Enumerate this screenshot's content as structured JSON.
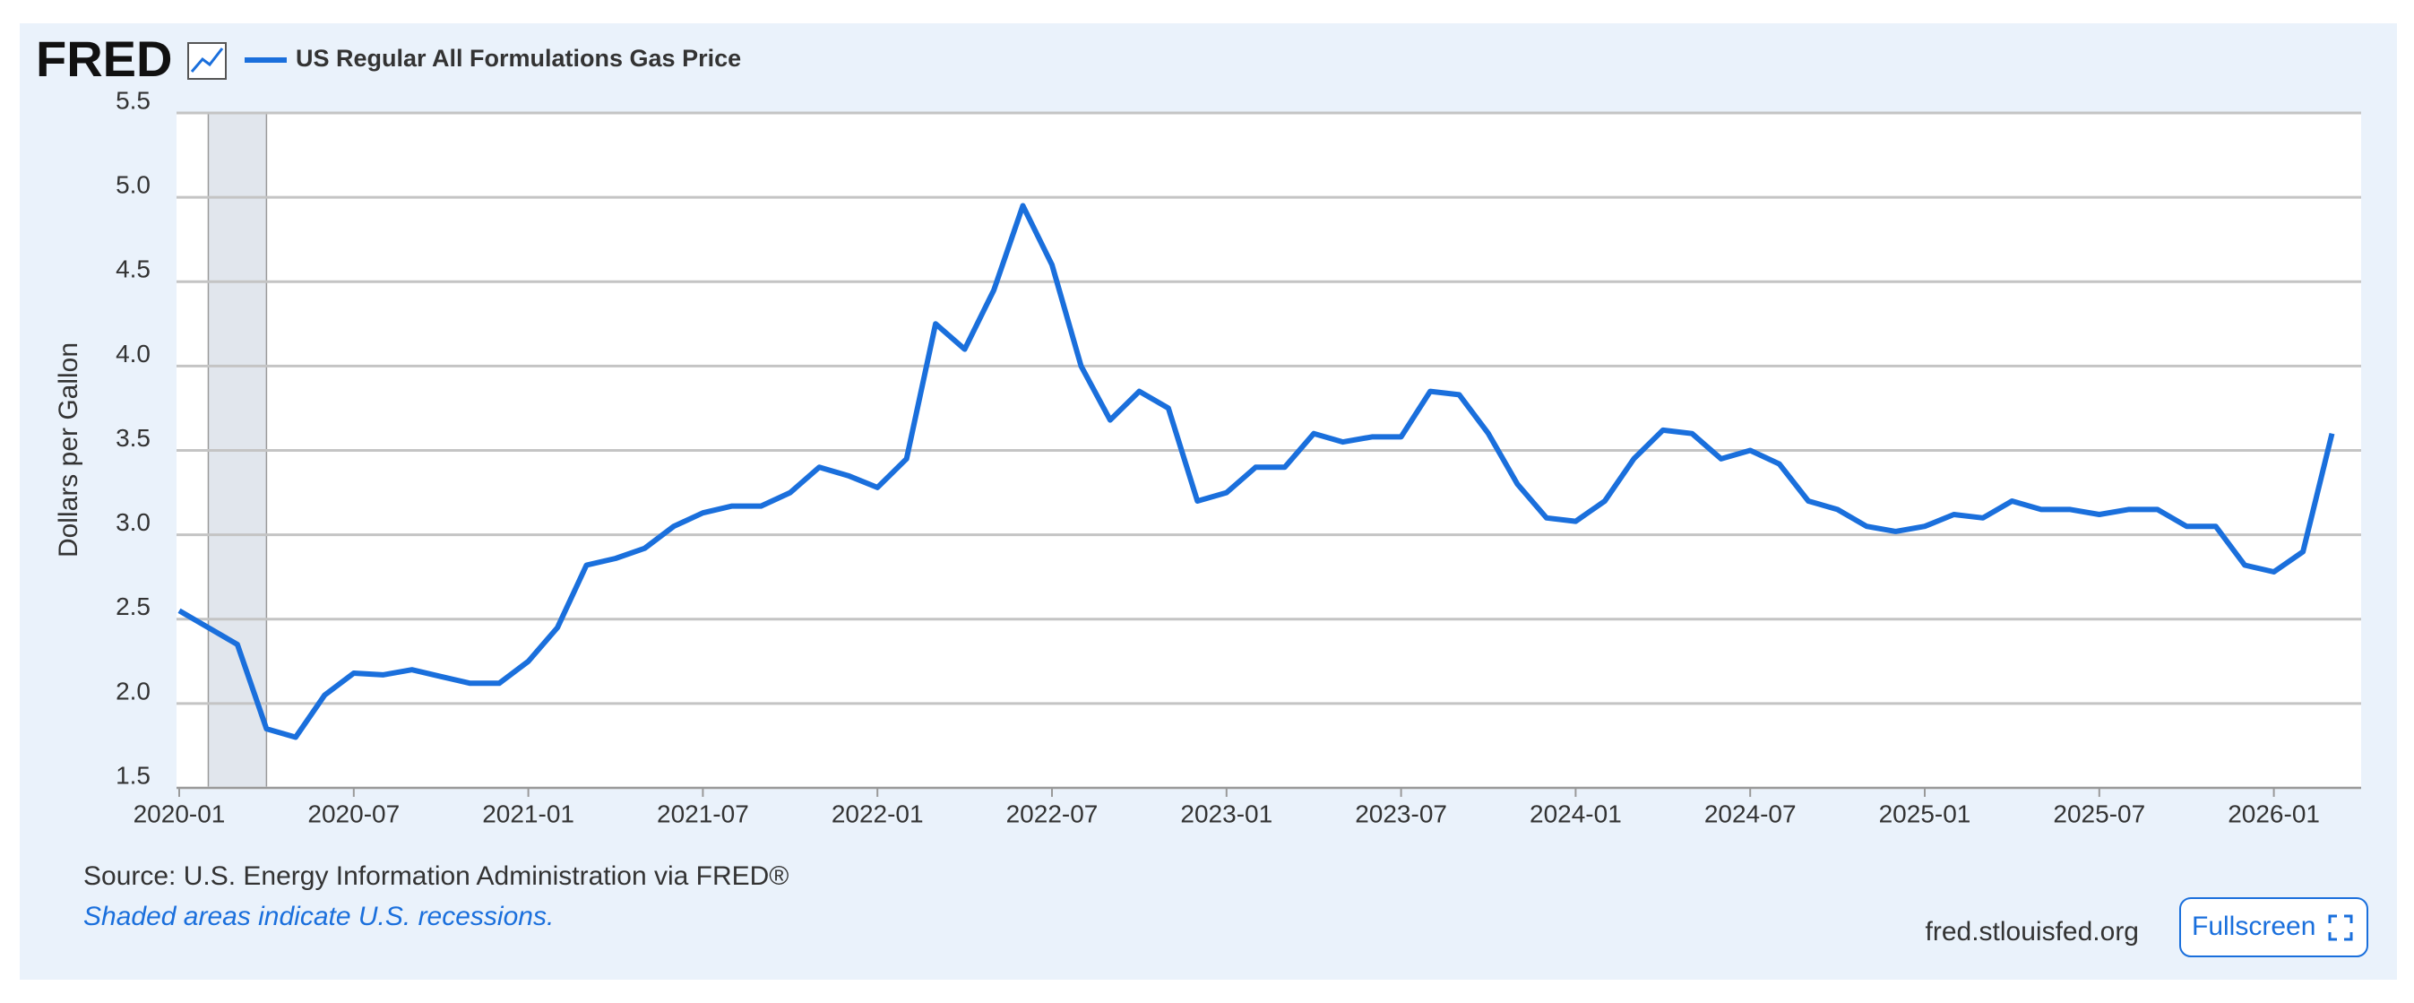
{
  "logo": "FRED",
  "chart_data": {
    "type": "line",
    "series": [
      {
        "name": "US Regular All Formulations Gas Price",
        "color": "#1a6fdc",
        "values": [
          2.55,
          2.45,
          2.35,
          1.85,
          1.8,
          2.05,
          2.18,
          2.17,
          2.2,
          2.16,
          2.12,
          2.12,
          2.25,
          2.45,
          2.82,
          2.86,
          2.92,
          3.05,
          3.13,
          3.17,
          3.17,
          3.25,
          3.4,
          3.35,
          3.28,
          3.45,
          4.25,
          4.1,
          4.45,
          4.95,
          4.6,
          4.0,
          3.68,
          3.85,
          3.75,
          3.2,
          3.25,
          3.4,
          3.4,
          3.6,
          3.55,
          3.58,
          3.58,
          3.85,
          3.83,
          3.6,
          3.3,
          3.1,
          3.08,
          3.2,
          3.45,
          3.62,
          3.6,
          3.45,
          3.5,
          3.42,
          3.2,
          3.15,
          3.05,
          3.02,
          3.05,
          3.12,
          3.1,
          3.2,
          3.15,
          3.15,
          3.12,
          3.15,
          3.15,
          3.05,
          3.05,
          2.82,
          2.78,
          2.9,
          3.6
        ]
      }
    ],
    "x": [
      "2020-01",
      "2020-02",
      "2020-03",
      "2020-04",
      "2020-05",
      "2020-06",
      "2020-07",
      "2020-08",
      "2020-09",
      "2020-10",
      "2020-11",
      "2020-12",
      "2021-01",
      "2021-02",
      "2021-03",
      "2021-04",
      "2021-05",
      "2021-06",
      "2021-07",
      "2021-08",
      "2021-09",
      "2021-10",
      "2021-11",
      "2021-12",
      "2022-01",
      "2022-02",
      "2022-03",
      "2022-04",
      "2022-05",
      "2022-06",
      "2022-07",
      "2022-08",
      "2022-09",
      "2022-10",
      "2022-11",
      "2022-12",
      "2023-01",
      "2023-02",
      "2023-03",
      "2023-04",
      "2023-05",
      "2023-06",
      "2023-07",
      "2023-08",
      "2023-09",
      "2023-10",
      "2023-11",
      "2023-12",
      "2024-01",
      "2024-02",
      "2024-03",
      "2024-04",
      "2024-05",
      "2024-06",
      "2024-07",
      "2024-08",
      "2024-09",
      "2024-10",
      "2024-11",
      "2024-12",
      "2025-01",
      "2025-02",
      "2025-03",
      "2025-04",
      "2025-05",
      "2025-06",
      "2025-07",
      "2025-08",
      "2025-09",
      "2025-10",
      "2025-11",
      "2025-12",
      "2026-01",
      "2026-02",
      "2026-03"
    ],
    "xlim": [
      "2020-01",
      "2026-04"
    ],
    "xticks": [
      "2020-01",
      "2020-07",
      "2021-01",
      "2021-07",
      "2022-01",
      "2022-07",
      "2023-01",
      "2023-07",
      "2024-01",
      "2024-07",
      "2025-01",
      "2025-07",
      "2026-01"
    ],
    "ylim": [
      1.5,
      5.5
    ],
    "yticks": [
      1.5,
      {
        "value": 2,
        "label": "2.0"
      },
      2.5,
      {
        "value": 3,
        "label": "3.0"
      },
      3.5,
      {
        "value": 4,
        "label": "4.0"
      },
      4.5,
      {
        "value": 5,
        "label": "5.0"
      },
      5.5
    ],
    "ylabel": "Dollars per Gallon",
    "grid": true,
    "recessions": [
      {
        "start": "2020-02",
        "end": "2020-04"
      }
    ],
    "source": "Source: U.S. Energy Information Administration via FRED®",
    "note": "Shaded areas indicate U.S. recessions.",
    "site": "fred.stlouisfed.org",
    "button": "Fullscreen"
  }
}
